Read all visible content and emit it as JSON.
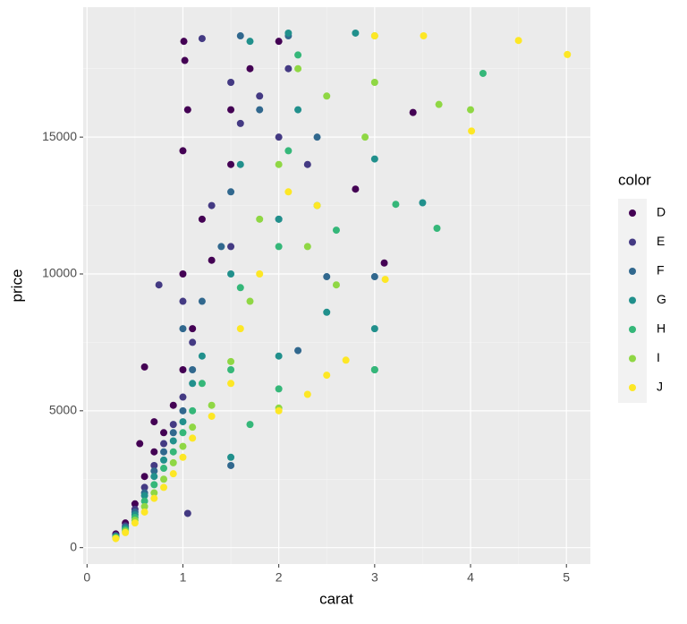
{
  "chart_data": {
    "type": "scatter",
    "x_label": "carat",
    "y_label": "price",
    "legend_title": "color",
    "xlim": [
      -0.04,
      5.25
    ],
    "ylim": [
      -599,
      19748
    ],
    "xticks": [
      0,
      1,
      2,
      3,
      4,
      5
    ],
    "yticks": [
      0,
      5000,
      10000,
      15000
    ],
    "x_minor_ticks": [
      0.5,
      1.5,
      2.5,
      3.5,
      4.5
    ],
    "y_minor_ticks": [
      2500,
      7500,
      12500,
      17500
    ],
    "grid": true,
    "series": [
      {
        "name": "D",
        "color": "#440154",
        "x": [
          0.3,
          0.4,
          0.5,
          0.55,
          0.6,
          0.6,
          0.7,
          0.7,
          0.8,
          0.9,
          1.0,
          1.0,
          1.0,
          1.01,
          1.02,
          1.05,
          1.1,
          1.2,
          1.3,
          1.5,
          1.5,
          1.7,
          2.0,
          2.8,
          3.4,
          3.1
        ],
        "values": [
          500,
          900,
          1600,
          3800,
          2600,
          6600,
          3500,
          4600,
          4200,
          5200,
          6500,
          10000,
          14500,
          18500,
          17800,
          16000,
          8000,
          12000,
          10500,
          14000,
          16000,
          17500,
          18500,
          13100,
          15900,
          10400
        ]
      },
      {
        "name": "E",
        "color": "#443A83",
        "x": [
          0.3,
          0.4,
          0.5,
          0.6,
          0.7,
          0.8,
          0.9,
          1.0,
          1.0,
          1.1,
          1.2,
          1.3,
          1.5,
          1.5,
          1.6,
          1.8,
          2.0,
          2.1,
          2.3,
          0.75,
          1.05
        ],
        "values": [
          450,
          800,
          1400,
          2200,
          3000,
          3800,
          4500,
          5500,
          9000,
          7500,
          18600,
          12500,
          11000,
          17000,
          15500,
          16500,
          15000,
          17500,
          14000,
          9600,
          1250
        ]
      },
      {
        "name": "F",
        "color": "#31688E",
        "x": [
          0.3,
          0.4,
          0.5,
          0.6,
          0.7,
          0.8,
          0.9,
          1.0,
          1.0,
          1.1,
          1.2,
          1.4,
          1.5,
          1.5,
          1.6,
          1.8,
          2.0,
          2.1,
          2.4,
          2.5,
          3.0,
          2.2
        ],
        "values": [
          420,
          750,
          1300,
          2000,
          2800,
          3500,
          4200,
          5000,
          8000,
          6500,
          9000,
          11000,
          3000,
          13000,
          18700,
          16000,
          12000,
          18700,
          15000,
          9900,
          9900,
          7200
        ]
      },
      {
        "name": "G",
        "color": "#21908C",
        "x": [
          0.3,
          0.4,
          0.5,
          0.6,
          0.7,
          0.8,
          0.9,
          1.0,
          1.1,
          1.2,
          1.5,
          1.5,
          1.6,
          1.7,
          2.0,
          2.0,
          2.1,
          2.2,
          2.5,
          2.8,
          3.0,
          3.0,
          3.5,
          3.0
        ],
        "values": [
          400,
          700,
          1200,
          1900,
          2600,
          3200,
          3900,
          4600,
          6000,
          7000,
          3300,
          10000,
          14000,
          18500,
          7000,
          12000,
          18800,
          16000,
          8600,
          18800,
          8000,
          14200,
          12600,
          6500
        ]
      },
      {
        "name": "H",
        "color": "#35B779",
        "x": [
          0.3,
          0.4,
          0.5,
          0.6,
          0.7,
          0.8,
          0.9,
          1.0,
          1.1,
          1.2,
          1.5,
          1.6,
          1.7,
          2.0,
          2.0,
          2.1,
          2.2,
          2.4,
          2.6,
          3.0,
          3.22,
          3.65,
          4.13
        ],
        "values": [
          380,
          650,
          1100,
          1700,
          2300,
          2900,
          3500,
          4200,
          5000,
          6000,
          6500,
          9500,
          4500,
          5800,
          11000,
          14500,
          18000,
          12500,
          11600,
          6500,
          12545,
          11668,
          17329
        ]
      },
      {
        "name": "I",
        "color": "#8FD744",
        "x": [
          0.3,
          0.4,
          0.5,
          0.6,
          0.7,
          0.8,
          0.9,
          1.0,
          1.1,
          1.3,
          1.5,
          1.7,
          1.8,
          2.0,
          2.0,
          2.2,
          2.3,
          2.5,
          2.6,
          3.0,
          3.0,
          3.67,
          4.0,
          2.9
        ],
        "values": [
          350,
          600,
          1000,
          1500,
          2000,
          2500,
          3100,
          3700,
          4400,
          5200,
          6800,
          9000,
          12000,
          5100,
          14000,
          17500,
          11000,
          16500,
          9600,
          18700,
          17000,
          16193,
          16000,
          15000
        ]
      },
      {
        "name": "J",
        "color": "#FDE725",
        "x": [
          0.3,
          0.4,
          0.5,
          0.6,
          0.7,
          0.8,
          0.9,
          1.0,
          1.1,
          1.3,
          1.5,
          1.6,
          1.8,
          2.0,
          2.1,
          2.3,
          2.4,
          2.5,
          2.7,
          3.0,
          3.11,
          3.51,
          4.01,
          4.5,
          5.01
        ],
        "values": [
          330,
          550,
          900,
          1300,
          1800,
          2200,
          2700,
          3300,
          4000,
          4800,
          6000,
          8000,
          10000,
          5000,
          13000,
          5600,
          12500,
          6300,
          6850,
          18700,
          9800,
          18701,
          15223,
          18531,
          18018
        ]
      }
    ]
  }
}
